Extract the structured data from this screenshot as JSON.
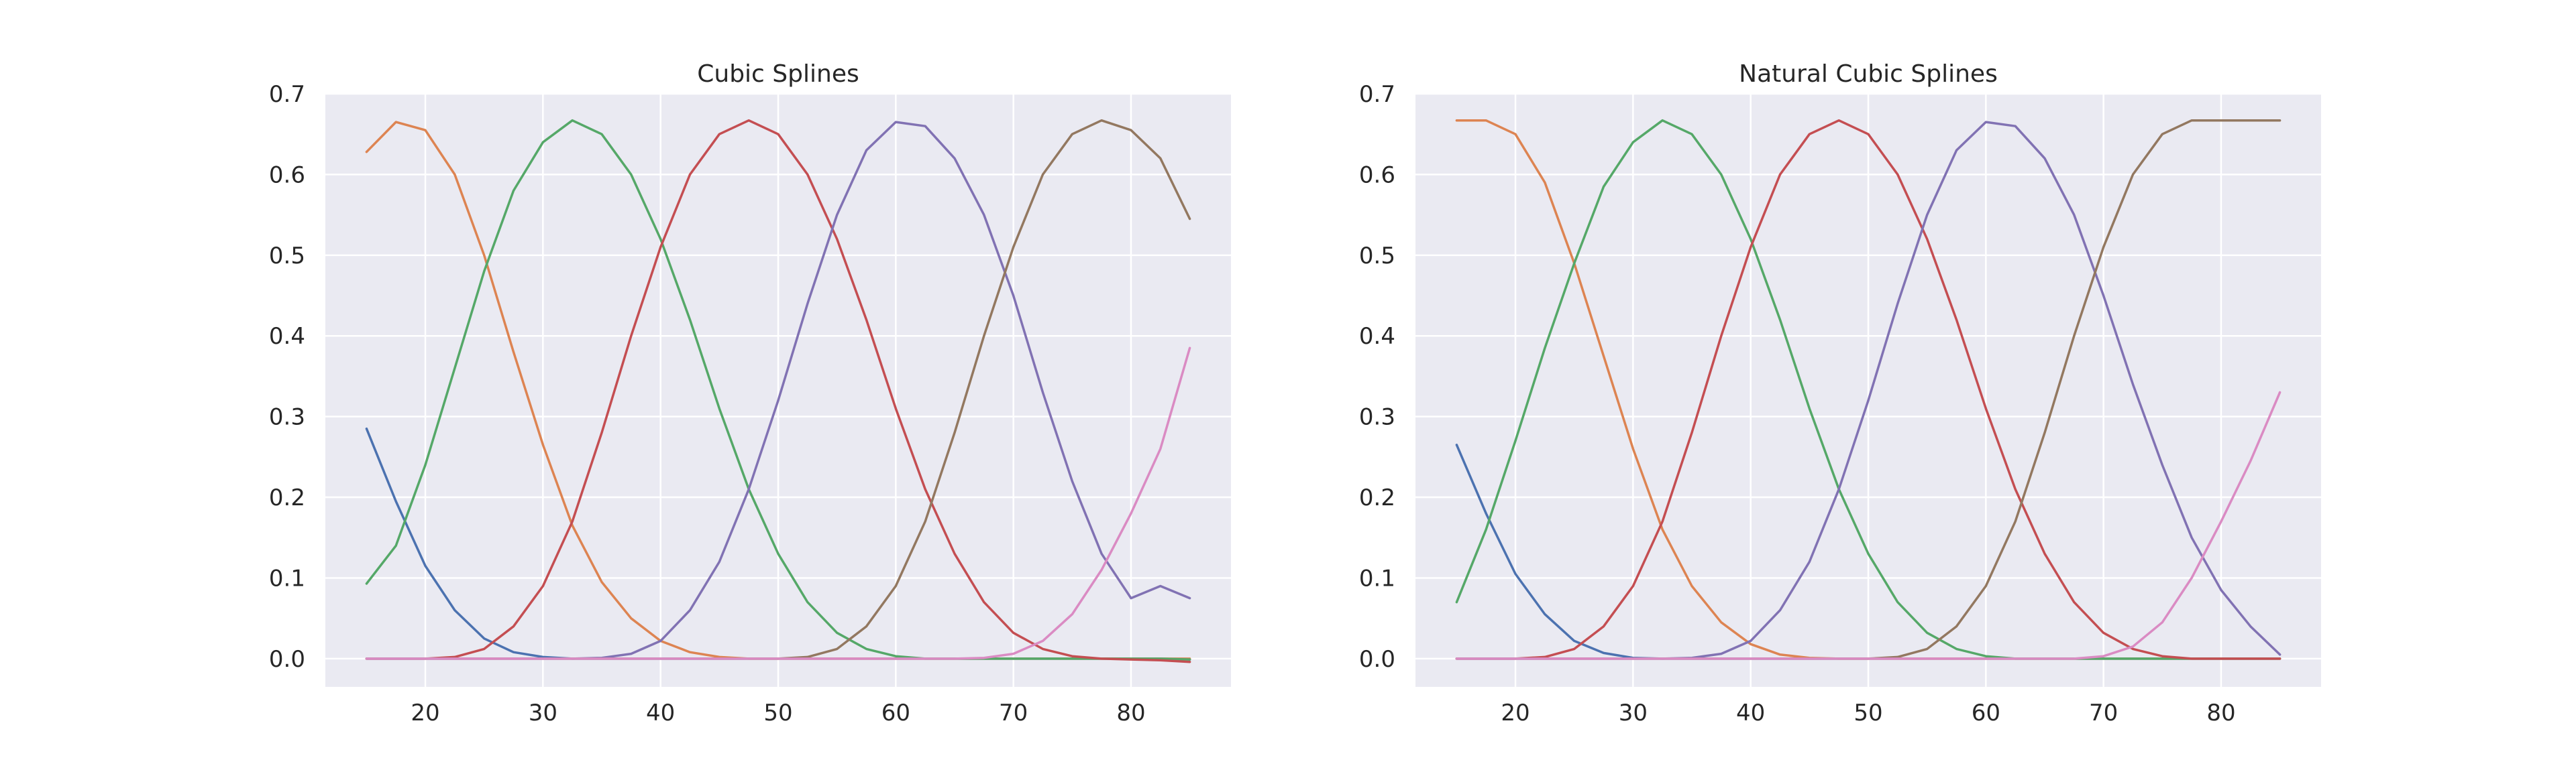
{
  "chart_data": [
    {
      "type": "line",
      "title": "Cubic Splines",
      "xlabel": "",
      "ylabel": "",
      "xlim": [
        11.5,
        88.5
      ],
      "ylim": [
        -0.035,
        0.7
      ],
      "xticks": [
        20,
        30,
        40,
        50,
        60,
        70,
        80
      ],
      "yticks": [
        0.0,
        0.1,
        0.2,
        0.3,
        0.4,
        0.5,
        0.6,
        0.7
      ],
      "xtick_labels": [
        "20",
        "30",
        "40",
        "50",
        "60",
        "70",
        "80"
      ],
      "ytick_labels": [
        "0.0",
        "0.1",
        "0.2",
        "0.3",
        "0.4",
        "0.5",
        "0.6",
        "0.7"
      ],
      "grid": true,
      "x": [
        15,
        17.5,
        20,
        22.5,
        25,
        27.5,
        30,
        32.5,
        35,
        37.5,
        40,
        42.5,
        45,
        47.5,
        50,
        52.5,
        55,
        57.5,
        60,
        62.5,
        65,
        67.5,
        70,
        72.5,
        75,
        77.5,
        80,
        82.5,
        85
      ],
      "series": [
        {
          "color": "#4c72b0",
          "values": [
            0.285,
            0.195,
            0.115,
            0.06,
            0.025,
            0.008,
            0.002,
            0.0,
            0.0,
            0.0,
            0.0,
            0.0,
            0.0,
            0.0,
            0.0,
            0.0,
            0.0,
            0.0,
            0.0,
            0.0,
            0.0,
            0.0,
            0.0,
            0.0,
            0.0,
            0.0,
            0.0,
            0.0,
            -0.001
          ]
        },
        {
          "color": "#dd8452",
          "values": [
            0.628,
            0.665,
            0.655,
            0.6,
            0.5,
            0.38,
            0.265,
            0.165,
            0.095,
            0.05,
            0.022,
            0.008,
            0.002,
            0.0,
            0.0,
            0.0,
            0.0,
            0.0,
            0.0,
            0.0,
            0.0,
            0.0,
            0.0,
            0.0,
            0.0,
            0.0,
            0.0,
            0.0,
            0.0
          ]
        },
        {
          "color": "#55a868",
          "values": [
            0.093,
            0.14,
            0.24,
            0.36,
            0.48,
            0.58,
            0.64,
            0.667,
            0.65,
            0.6,
            0.52,
            0.42,
            0.31,
            0.21,
            0.13,
            0.07,
            0.032,
            0.012,
            0.003,
            0.0,
            0.0,
            0.0,
            0.0,
            0.0,
            0.0,
            0.0,
            0.0,
            0.0,
            -0.001
          ]
        },
        {
          "color": "#c44e52",
          "values": [
            0.0,
            0.0,
            0.0,
            0.002,
            0.012,
            0.04,
            0.09,
            0.17,
            0.28,
            0.4,
            0.51,
            0.6,
            0.65,
            0.667,
            0.65,
            0.6,
            0.52,
            0.42,
            0.31,
            0.21,
            0.13,
            0.07,
            0.032,
            0.012,
            0.003,
            0.0,
            -0.001,
            -0.002,
            -0.004
          ]
        },
        {
          "color": "#8172b3",
          "values": [
            0.0,
            0.0,
            0.0,
            0.0,
            0.0,
            0.0,
            0.0,
            0.0,
            0.001,
            0.006,
            0.022,
            0.06,
            0.12,
            0.21,
            0.32,
            0.44,
            0.55,
            0.63,
            0.665,
            0.66,
            0.62,
            0.55,
            0.45,
            0.33,
            0.22,
            0.13,
            0.075,
            0.09,
            0.075
          ]
        },
        {
          "color": "#937860",
          "values": [
            0.0,
            0.0,
            0.0,
            0.0,
            0.0,
            0.0,
            0.0,
            0.0,
            0.0,
            0.0,
            0.0,
            0.0,
            0.0,
            0.0,
            0.0,
            0.002,
            0.012,
            0.04,
            0.09,
            0.17,
            0.28,
            0.4,
            0.51,
            0.6,
            0.65,
            0.667,
            0.655,
            0.62,
            0.545
          ]
        },
        {
          "color": "#da8bc3",
          "values": [
            0.0,
            0.0,
            0.0,
            0.0,
            0.0,
            0.0,
            0.0,
            0.0,
            0.0,
            0.0,
            0.0,
            0.0,
            0.0,
            0.0,
            0.0,
            0.0,
            0.0,
            0.0,
            0.0,
            0.0,
            0.0,
            0.001,
            0.006,
            0.022,
            0.055,
            0.11,
            0.18,
            0.26,
            0.385
          ]
        }
      ]
    },
    {
      "type": "line",
      "title": "Natural Cubic Splines",
      "xlabel": "",
      "ylabel": "",
      "xlim": [
        11.5,
        88.5
      ],
      "ylim": [
        -0.035,
        0.7
      ],
      "xticks": [
        20,
        30,
        40,
        50,
        60,
        70,
        80
      ],
      "yticks": [
        0.0,
        0.1,
        0.2,
        0.3,
        0.4,
        0.5,
        0.6,
        0.7
      ],
      "xtick_labels": [
        "20",
        "30",
        "40",
        "50",
        "60",
        "70",
        "80"
      ],
      "ytick_labels": [
        "0.0",
        "0.1",
        "0.2",
        "0.3",
        "0.4",
        "0.5",
        "0.6",
        "0.7"
      ],
      "grid": true,
      "x": [
        15,
        17.5,
        20,
        22.5,
        25,
        27.5,
        30,
        32.5,
        35,
        37.5,
        40,
        42.5,
        45,
        47.5,
        50,
        52.5,
        55,
        57.5,
        60,
        62.5,
        65,
        67.5,
        70,
        72.5,
        75,
        77.5,
        80,
        82.5,
        85
      ],
      "series": [
        {
          "color": "#4c72b0",
          "values": [
            0.265,
            0.18,
            0.105,
            0.055,
            0.022,
            0.007,
            0.001,
            0.0,
            0.0,
            0.0,
            0.0,
            0.0,
            0.0,
            0.0,
            0.0,
            0.0,
            0.0,
            0.0,
            0.0,
            0.0,
            0.0,
            0.0,
            0.0,
            0.0,
            0.0,
            0.0,
            0.0,
            0.0,
            0.0
          ]
        },
        {
          "color": "#dd8452",
          "values": [
            0.667,
            0.667,
            0.65,
            0.59,
            0.49,
            0.375,
            0.26,
            0.16,
            0.09,
            0.045,
            0.018,
            0.005,
            0.001,
            0.0,
            0.0,
            0.0,
            0.0,
            0.0,
            0.0,
            0.0,
            0.0,
            0.0,
            0.0,
            0.0,
            0.0,
            0.0,
            0.0,
            0.0,
            0.0
          ]
        },
        {
          "color": "#55a868",
          "values": [
            0.07,
            0.16,
            0.27,
            0.385,
            0.49,
            0.585,
            0.64,
            0.667,
            0.65,
            0.6,
            0.52,
            0.42,
            0.31,
            0.21,
            0.13,
            0.07,
            0.032,
            0.012,
            0.003,
            0.0,
            0.0,
            0.0,
            0.0,
            0.0,
            0.0,
            0.0,
            0.0,
            0.0,
            0.0
          ]
        },
        {
          "color": "#c44e52",
          "values": [
            0.0,
            0.0,
            0.0,
            0.002,
            0.012,
            0.04,
            0.09,
            0.17,
            0.28,
            0.4,
            0.51,
            0.6,
            0.65,
            0.667,
            0.65,
            0.6,
            0.52,
            0.42,
            0.31,
            0.21,
            0.13,
            0.07,
            0.032,
            0.012,
            0.003,
            0.0,
            0.0,
            0.0,
            0.0
          ]
        },
        {
          "color": "#8172b3",
          "values": [
            0.0,
            0.0,
            0.0,
            0.0,
            0.0,
            0.0,
            0.0,
            0.0,
            0.001,
            0.006,
            0.022,
            0.06,
            0.12,
            0.21,
            0.32,
            0.44,
            0.55,
            0.63,
            0.665,
            0.66,
            0.62,
            0.55,
            0.45,
            0.34,
            0.24,
            0.15,
            0.085,
            0.04,
            0.005
          ]
        },
        {
          "color": "#937860",
          "values": [
            0.0,
            0.0,
            0.0,
            0.0,
            0.0,
            0.0,
            0.0,
            0.0,
            0.0,
            0.0,
            0.0,
            0.0,
            0.0,
            0.0,
            0.0,
            0.002,
            0.012,
            0.04,
            0.09,
            0.17,
            0.28,
            0.4,
            0.51,
            0.6,
            0.65,
            0.667,
            0.667,
            0.667,
            0.667
          ]
        },
        {
          "color": "#da8bc3",
          "values": [
            0.0,
            0.0,
            0.0,
            0.0,
            0.0,
            0.0,
            0.0,
            0.0,
            0.0,
            0.0,
            0.0,
            0.0,
            0.0,
            0.0,
            0.0,
            0.0,
            0.0,
            0.0,
            0.0,
            0.0,
            0.0,
            0.0,
            0.003,
            0.015,
            0.045,
            0.1,
            0.17,
            0.245,
            0.33
          ]
        }
      ]
    }
  ]
}
